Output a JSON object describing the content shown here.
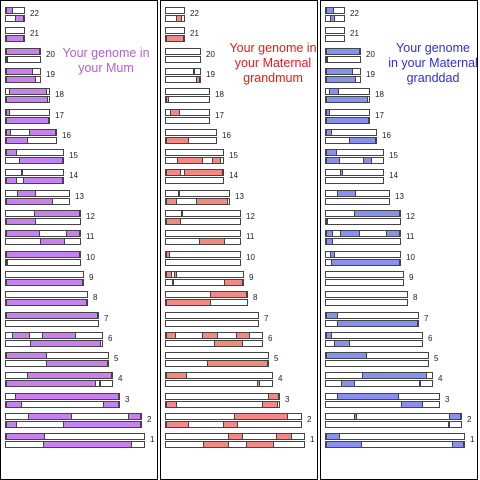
{
  "colors": {
    "mum": "#c882f0",
    "grandmum": "#f28a82",
    "granddad": "#8891f0",
    "border": "#444444"
  },
  "panels": [
    {
      "key": "mum",
      "title": "Your genome in\nyour Mum",
      "title_color": "#b35ddc",
      "fill": "#c882f0",
      "chromosomes": [
        {
          "label": "22",
          "len": 0.28,
          "top": [
            [
              0.0,
              0.4
            ]
          ],
          "bot": [
            [
              0.48,
              1.0
            ]
          ]
        },
        {
          "label": "21",
          "len": 0.28,
          "top": [],
          "bot": [
            [
              0.0,
              1.0
            ]
          ]
        },
        {
          "label": "20",
          "len": 0.5,
          "top": [
            [
              0.0,
              1.0
            ]
          ],
          "bot": [
            [
              0.0,
              0.02
            ]
          ]
        },
        {
          "label": "19",
          "len": 0.5,
          "top": [
            [
              0.0,
              0.78
            ]
          ],
          "bot": [
            [
              0.0,
              0.88
            ]
          ]
        },
        {
          "label": "18",
          "len": 0.62,
          "top": [
            [
              0.06,
              0.95
            ]
          ],
          "bot": [
            [
              0.0,
              0.97
            ]
          ]
        },
        {
          "label": "17",
          "len": 0.62,
          "top": [
            [
              0.0,
              0.1
            ]
          ],
          "bot": [
            [
              0.0,
              1.0
            ]
          ]
        },
        {
          "label": "16",
          "len": 0.72,
          "top": [
            [
              0.0,
              0.1
            ],
            [
              0.45,
              1.0
            ]
          ],
          "bot": [
            [
              0.0,
              0.43
            ]
          ]
        },
        {
          "label": "15",
          "len": 0.82,
          "top": [
            [
              0.0,
              0.2
            ]
          ],
          "bot": [
            [
              0.22,
              1.0
            ]
          ]
        },
        {
          "label": "14",
          "len": 0.82,
          "top": [
            [
              0.26,
              0.3
            ]
          ],
          "bot": [
            [
              0.0,
              0.2
            ],
            [
              0.3,
              1.0
            ]
          ]
        },
        {
          "label": "13",
          "len": 0.9,
          "top": [
            [
              0.18,
              0.48
            ]
          ],
          "bot": [
            [
              0.0,
              0.75
            ]
          ]
        },
        {
          "label": "12",
          "len": 1.05,
          "top": [
            [
              0.38,
              1.0
            ]
          ],
          "bot": [
            [
              0.0,
              0.4
            ]
          ]
        },
        {
          "label": "11",
          "len": 1.05,
          "top": [
            [
              0.0,
              0.46
            ],
            [
              0.81,
              1.0
            ]
          ],
          "bot": [
            [
              0.46,
              0.8
            ]
          ]
        },
        {
          "label": "10",
          "len": 1.05,
          "top": [
            [
              0.0,
              1.0
            ]
          ],
          "bot": [
            [
              0.0,
              0.02
            ]
          ]
        },
        {
          "label": "9",
          "len": 1.1,
          "top": [],
          "bot": [
            [
              0.0,
              1.0
            ]
          ]
        },
        {
          "label": "8",
          "len": 1.15,
          "top": [],
          "bot": [
            [
              0.0,
              1.0
            ]
          ]
        },
        {
          "label": "7",
          "len": 1.3,
          "top": [
            [
              0.0,
              1.0
            ]
          ],
          "bot": []
        },
        {
          "label": "6",
          "len": 1.36,
          "top": [
            [
              0.06,
              0.25
            ],
            [
              0.38,
              0.73
            ]
          ],
          "bot": [
            [
              0.25,
              0.99
            ]
          ]
        },
        {
          "label": "5",
          "len": 1.44,
          "top": [
            [
              0.0,
              0.4
            ]
          ],
          "bot": [
            [
              0.39,
              1.0
            ]
          ]
        },
        {
          "label": "4",
          "len": 1.5,
          "top": [
            [
              0.2,
              1.0
            ]
          ],
          "bot": [
            [
              0.0,
              0.85
            ],
            [
              0.88,
              0.9
            ]
          ]
        },
        {
          "label": "3",
          "len": 1.6,
          "top": [
            [
              0.08,
              1.0
            ]
          ],
          "bot": [
            [
              0.0,
              0.14
            ],
            [
              0.86,
              1.0
            ]
          ]
        },
        {
          "label": "2",
          "len": 1.9,
          "top": [
            [
              0.16,
              0.49
            ],
            [
              0.9,
              1.0
            ]
          ],
          "bot": [
            [
              0.0,
              0.08
            ],
            [
              0.42,
              1.0
            ]
          ]
        },
        {
          "label": "1",
          "len": 1.95,
          "top": [
            [
              0.0,
              0.28
            ]
          ],
          "bot": [
            [
              0.27,
              0.91
            ]
          ]
        }
      ]
    },
    {
      "key": "grandmum",
      "title": "Your genome in\nyour Maternal\ngrandmum",
      "title_color": "#e81b1b",
      "fill": "#f28a82",
      "chromosomes": [
        {
          "label": "22",
          "len": 0.28,
          "top": [],
          "bot": [
            [
              0.55,
              0.9
            ]
          ]
        },
        {
          "label": "21",
          "len": 0.28,
          "top": [],
          "bot": [
            [
              0.0,
              1.0
            ]
          ]
        },
        {
          "label": "20",
          "len": 0.5,
          "top": [],
          "bot": [
            [
              0.0,
              0.0
            ]
          ]
        },
        {
          "label": "19",
          "len": 0.5,
          "top": [
            [
              0.79,
              0.85
            ]
          ],
          "bot": [
            [
              0.88,
              0.99
            ]
          ]
        },
        {
          "label": "18",
          "len": 0.62,
          "top": [],
          "bot": [
            [
              0.0,
              0.07
            ]
          ]
        },
        {
          "label": "17",
          "len": 0.62,
          "top": [
            [
              0.1,
              0.32
            ]
          ],
          "bot": []
        },
        {
          "label": "16",
          "len": 0.72,
          "top": [],
          "bot": [
            [
              0.0,
              0.45
            ]
          ]
        },
        {
          "label": "15",
          "len": 0.82,
          "top": [],
          "bot": [
            [
              0.2,
              0.65
            ],
            [
              0.8,
              0.97
            ]
          ]
        },
        {
          "label": "14",
          "len": 0.82,
          "top": [
            [
              0.0,
              0.26
            ],
            [
              0.31,
              1.0
            ]
          ],
          "bot": []
        },
        {
          "label": "13",
          "len": 0.9,
          "top": [
            [
              0.19,
              0.2
            ]
          ],
          "bot": [
            [
              0.0,
              0.18
            ],
            [
              0.47,
              0.98
            ]
          ]
        },
        {
          "label": "12",
          "len": 1.05,
          "top": [
            [
              0.2,
              0.22
            ]
          ],
          "bot": [
            [
              0.0,
              0.2
            ]
          ]
        },
        {
          "label": "11",
          "len": 1.05,
          "top": [],
          "bot": [
            [
              0.45,
              0.8
            ]
          ]
        },
        {
          "label": "10",
          "len": 1.05,
          "top": [
            [
              0.0,
              0.06
            ]
          ],
          "bot": []
        },
        {
          "label": "9",
          "len": 1.1,
          "top": [
            [
              0.0,
              0.08
            ],
            [
              0.1,
              0.14
            ]
          ],
          "bot": [
            [
              0.08,
              0.1
            ],
            [
              0.75,
              1.0
            ]
          ]
        },
        {
          "label": "8",
          "len": 1.15,
          "top": [
            [
              0.54,
              1.0
            ]
          ],
          "bot": [
            [
              0.0,
              0.55
            ]
          ]
        },
        {
          "label": "7",
          "len": 1.3,
          "top": [],
          "bot": []
        },
        {
          "label": "6",
          "len": 1.36,
          "top": [
            [
              0.0,
              0.1
            ],
            [
              0.38,
              0.54
            ],
            [
              0.73,
              0.88
            ]
          ],
          "bot": [
            [
              0.5,
              0.8
            ]
          ]
        },
        {
          "label": "5",
          "len": 1.44,
          "top": [],
          "bot": [
            [
              0.4,
              1.0
            ]
          ]
        },
        {
          "label": "4",
          "len": 1.5,
          "top": [
            [
              0.0,
              0.2
            ]
          ],
          "bot": [
            [
              0.0,
              0.0
            ],
            [
              0.86,
              0.89
            ]
          ]
        },
        {
          "label": "3",
          "len": 1.6,
          "top": [
            [
              0.9,
              1.0
            ]
          ],
          "bot": [
            [
              0.0,
              0.1
            ],
            [
              0.85,
              0.99
            ]
          ]
        },
        {
          "label": "2",
          "len": 1.9,
          "top": [
            [
              0.5,
              0.9
            ]
          ],
          "bot": [
            [
              0.0,
              0.17
            ],
            [
              0.42,
              0.53
            ]
          ]
        },
        {
          "label": "1",
          "len": 1.95,
          "top": [
            [
              0.45,
              0.56
            ],
            [
              0.8,
              0.91
            ]
          ],
          "bot": [
            [
              0.27,
              0.46
            ],
            [
              0.58,
              0.78
            ]
          ]
        }
      ]
    },
    {
      "key": "granddad",
      "title": "Your genome\nin your Maternal\ngranddad",
      "title_color": "#2c30e0",
      "fill": "#8891f0",
      "chromosomes": [
        {
          "label": "22",
          "len": 0.28,
          "top": [
            [
              0.0,
              0.42
            ]
          ],
          "bot": [
            [
              0.2,
              0.52
            ]
          ]
        },
        {
          "label": "21",
          "len": 0.28,
          "top": [],
          "bot": [
            [
              0.0,
              0.0
            ]
          ]
        },
        {
          "label": "20",
          "len": 0.5,
          "top": [
            [
              0.0,
              1.0
            ]
          ],
          "bot": [
            [
              0.0,
              0.05
            ]
          ]
        },
        {
          "label": "19",
          "len": 0.5,
          "top": [
            [
              0.0,
              0.8
            ]
          ],
          "bot": [
            [
              0.0,
              0.88
            ]
          ]
        },
        {
          "label": "18",
          "len": 0.62,
          "top": [
            [
              0.06,
              0.3
            ]
          ],
          "bot": [
            [
              0.0,
              0.97
            ]
          ]
        },
        {
          "label": "17",
          "len": 0.62,
          "top": [
            [
              0.0,
              0.1
            ]
          ],
          "bot": [
            [
              0.0,
              1.0
            ]
          ]
        },
        {
          "label": "16",
          "len": 0.72,
          "top": [
            [
              0.0,
              0.12
            ]
          ],
          "bot": [
            [
              0.46,
              1.0
            ]
          ]
        },
        {
          "label": "15",
          "len": 0.82,
          "top": [
            [
              0.0,
              0.2
            ]
          ],
          "bot": [
            [
              0.0,
              0.25
            ],
            [
              0.65,
              0.8
            ]
          ]
        },
        {
          "label": "14",
          "len": 0.82,
          "top": [
            [
              0.25,
              0.3
            ]
          ],
          "bot": []
        },
        {
          "label": "13",
          "len": 0.9,
          "top": [
            [
              0.18,
              0.48
            ]
          ],
          "bot": [
            [
              0.0,
              0.0
            ]
          ]
        },
        {
          "label": "12",
          "len": 1.05,
          "top": [
            [
              0.38,
              1.0
            ]
          ],
          "bot": [
            [
              0.0,
              0.02
            ]
          ]
        },
        {
          "label": "11",
          "len": 1.05,
          "top": [
            [
              0.0,
              0.1
            ],
            [
              0.19,
              0.46
            ],
            [
              0.81,
              1.0
            ]
          ],
          "bot": [
            [
              0.0,
              0.1
            ]
          ]
        },
        {
          "label": "10",
          "len": 1.05,
          "top": [
            [
              0.06,
              0.12
            ]
          ],
          "bot": [
            [
              0.07,
              1.0
            ]
          ]
        },
        {
          "label": "9",
          "len": 1.1,
          "top": [],
          "bot": [
            [
              0.0,
              0.0
            ]
          ]
        },
        {
          "label": "8",
          "len": 1.15,
          "top": [],
          "bot": [
            [
              0.0,
              0.0
            ]
          ]
        },
        {
          "label": "7",
          "len": 1.3,
          "top": [
            [
              0.0,
              0.13
            ]
          ],
          "bot": [
            [
              0.12,
              1.0
            ]
          ]
        },
        {
          "label": "6",
          "len": 1.36,
          "top": [
            [
              0.0,
              0.06
            ]
          ],
          "bot": [
            [
              0.08,
              0.25
            ]
          ]
        },
        {
          "label": "5",
          "len": 1.44,
          "top": [
            [
              0.0,
              0.4
            ]
          ],
          "bot": []
        },
        {
          "label": "4",
          "len": 1.5,
          "top": [
            [
              0.34,
              0.95
            ]
          ],
          "bot": [
            [
              0.14,
              0.27
            ],
            [
              0.88,
              0.9
            ]
          ]
        },
        {
          "label": "3",
          "len": 1.6,
          "top": [
            [
              0.1,
              0.65
            ]
          ],
          "bot": [
            [
              0.66,
              0.86
            ]
          ]
        },
        {
          "label": "2",
          "len": 1.9,
          "top": [
            [
              0.21,
              0.23
            ],
            [
              0.91,
              1.0
            ]
          ],
          "bot": [
            [
              0.9,
              0.91
            ]
          ]
        },
        {
          "label": "1",
          "len": 1.95,
          "top": [
            [
              0.0,
              0.1
            ]
          ],
          "bot": [
            [
              0.0,
              0.26
            ],
            [
              0.91,
              1.0
            ]
          ]
        }
      ]
    }
  ]
}
